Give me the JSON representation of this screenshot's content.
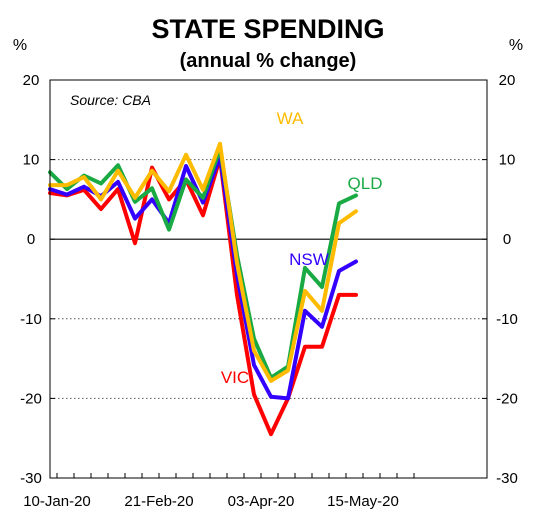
{
  "chart_data": {
    "type": "line",
    "title": "STATE SPENDING",
    "subtitle": "(annual % change)",
    "ylabel_left": "%",
    "ylabel_right": "%",
    "source": "Source: CBA",
    "ylim": [
      -30,
      20
    ],
    "yticks": [
      "20",
      "10",
      "0",
      "-10",
      "-20",
      "-30"
    ],
    "ytick_values": [
      20,
      10,
      0,
      -10,
      -20,
      -30
    ],
    "grid": "horizontal dotted",
    "x_tick_labels": [
      "10-Jan-20",
      "21-Feb-20",
      "03-Apr-20",
      "15-May-20"
    ],
    "x_tick_indices": [
      0,
      6,
      12,
      18
    ],
    "x_count": 22,
    "series": [
      {
        "name": "VIC",
        "color": "#ff0000",
        "values": [
          5.8,
          5.5,
          6.2,
          3.8,
          6.3,
          -0.5,
          9,
          5,
          7.5,
          3,
          10.2,
          -7,
          -19.5,
          -24.5,
          -20,
          -13.5,
          -13.5,
          -7,
          -7
        ]
      },
      {
        "name": "NSW",
        "color": "#3300ff",
        "values": [
          6.3,
          5.6,
          6.6,
          5.4,
          7.2,
          2.6,
          5,
          2,
          9.2,
          4.6,
          10.4,
          -4.5,
          -15.8,
          -19.8,
          -20,
          -9,
          -11,
          -4,
          -2.8
        ]
      },
      {
        "name": "QLD",
        "color": "#1aaa44",
        "values": [
          8.4,
          6.3,
          8,
          7,
          9.3,
          4.7,
          6.4,
          1.2,
          7.5,
          5.2,
          11.4,
          -2,
          -12.5,
          -17.4,
          -16,
          -3.6,
          -6,
          4.5,
          5.5
        ]
      },
      {
        "name": "WA",
        "color": "#ffbb00",
        "values": [
          6.8,
          6.8,
          7.8,
          5,
          8.6,
          5.2,
          8.6,
          6,
          10.6,
          6.2,
          12,
          -3,
          -14,
          -17.8,
          -16.5,
          -6.5,
          -9,
          2,
          3.5
        ]
      }
    ]
  }
}
